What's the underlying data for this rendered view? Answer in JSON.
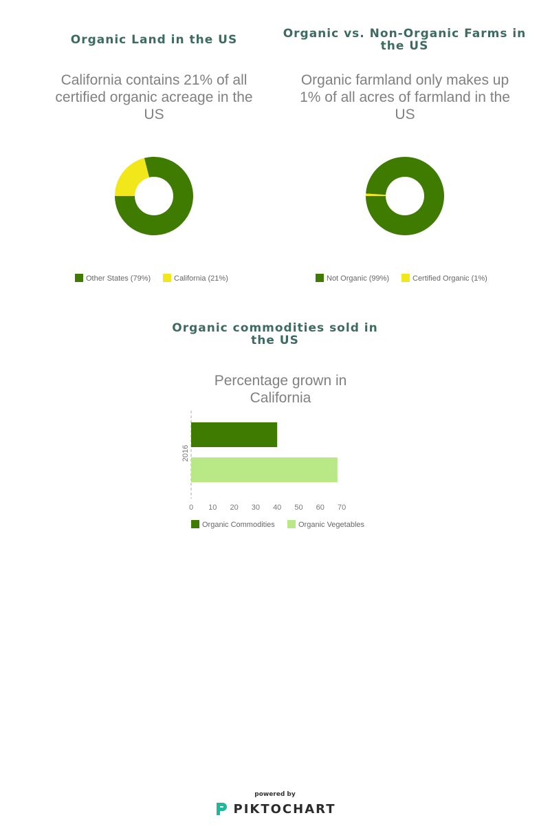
{
  "colors": {
    "dark_green": "#3e7b00",
    "yellow": "#f2e71b",
    "light_green": "#b8e986",
    "heading": "#3d6b62",
    "subtitle": "#808080"
  },
  "panels": {
    "land": {
      "heading": "Organic Land in the US",
      "subtitle": "California contains 21% of all certified organic acreage in the US"
    },
    "farms": {
      "heading": "Organic vs. Non-Organic Farms in the US",
      "subtitle": "Organic farmland only makes up 1% of all acres of farmland in the US"
    },
    "commodities": {
      "heading": "Organic commodities sold in the US",
      "subtitle": "Percentage grown in California"
    }
  },
  "chart_data": [
    {
      "type": "pie",
      "donut": true,
      "categories": [
        "Other States (79%)",
        "California (21%)"
      ],
      "values": [
        79,
        21
      ],
      "colors": [
        "#3e7b00",
        "#f2e71b"
      ],
      "legend": "bottom"
    },
    {
      "type": "pie",
      "donut": true,
      "categories": [
        "Not Organic (99%)",
        "Certified Organic (1%)"
      ],
      "values": [
        99,
        1
      ],
      "colors": [
        "#3e7b00",
        "#f2e71b"
      ],
      "legend": "bottom"
    },
    {
      "type": "bar",
      "orientation": "horizontal",
      "categories": [
        "2016"
      ],
      "series": [
        {
          "name": "Organic Commodities",
          "values": [
            40
          ],
          "color": "#3e7b00"
        },
        {
          "name": "Organic Vegetables",
          "values": [
            68
          ],
          "color": "#b8e986"
        }
      ],
      "x_ticks": [
        0,
        10,
        20,
        30,
        40,
        50,
        60,
        70
      ],
      "xlim": [
        0,
        70
      ],
      "legend": "bottom"
    }
  ],
  "footer": {
    "powered_by": "powered by",
    "brand": "PIKTOCHART"
  }
}
